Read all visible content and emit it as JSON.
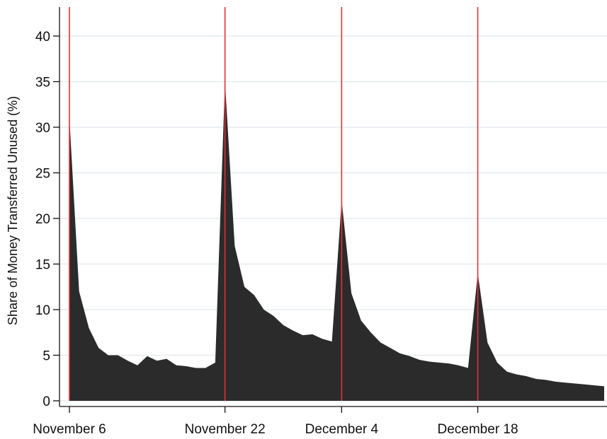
{
  "chart_data": {
    "type": "area",
    "title": "",
    "xlabel": "",
    "ylabel": "Share of Money Transferred Unused (%)",
    "x_unit": "days",
    "x_range": [
      0,
      55
    ],
    "ylim": [
      0,
      40
    ],
    "y_ticks": [
      0,
      5,
      10,
      15,
      20,
      25,
      30,
      35,
      40
    ],
    "x_ticks": [
      {
        "day": 0,
        "label": "November 6"
      },
      {
        "day": 16,
        "label": "November 22"
      },
      {
        "day": 28,
        "label": "December 4"
      },
      {
        "day": 42,
        "label": "December 18"
      }
    ],
    "vertical_lines": [
      0,
      16,
      28,
      42
    ],
    "grid": "horizontal",
    "colors": {
      "fill": "#2b2b2b",
      "vline": "#e0303a",
      "grid": "#e6ecf0",
      "axis": "#111111"
    },
    "series": [
      {
        "x": [
          0,
          1,
          2,
          3,
          4,
          5,
          6,
          7,
          8,
          9,
          10,
          11,
          12,
          13,
          14,
          15,
          16,
          17,
          18,
          19,
          20,
          21,
          22,
          23,
          24,
          25,
          26,
          27,
          28,
          29,
          30,
          31,
          32,
          33,
          34,
          35,
          36,
          37,
          38,
          39,
          40,
          41,
          42,
          43,
          44,
          45,
          46,
          47,
          48,
          49,
          50,
          51,
          52,
          53,
          54,
          55
        ],
        "values": [
          31.0,
          12.0,
          8.0,
          5.8,
          5.0,
          5.0,
          4.4,
          3.9,
          4.9,
          4.4,
          4.6,
          3.9,
          3.8,
          3.6,
          3.6,
          4.2,
          35.0,
          17.0,
          12.5,
          11.6,
          10.0,
          9.3,
          8.3,
          7.7,
          7.2,
          7.3,
          6.8,
          6.5,
          22.0,
          11.8,
          8.8,
          7.5,
          6.4,
          5.8,
          5.2,
          4.9,
          4.5,
          4.3,
          4.2,
          4.1,
          3.9,
          3.6,
          14.0,
          6.4,
          4.2,
          3.2,
          2.9,
          2.7,
          2.4,
          2.3,
          2.1,
          2.0,
          1.9,
          1.8,
          1.7,
          1.6
        ]
      }
    ]
  }
}
